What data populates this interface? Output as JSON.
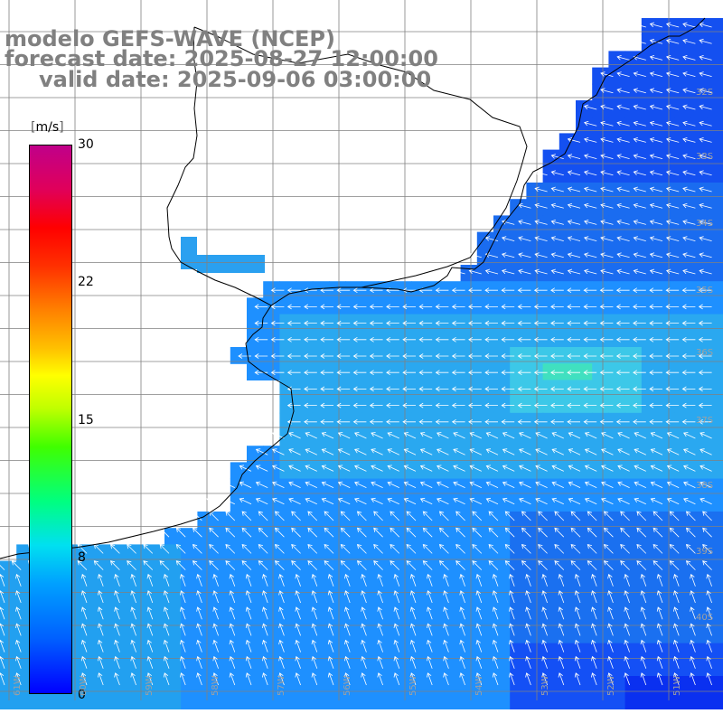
{
  "title": {
    "line1": "modelo GEFS-WAVE (NCEP)",
    "line2": "forecast date: 2025-08-27 12:00:00",
    "line3": "valid date: 2025-09-06 03:00:00"
  },
  "colorbar": {
    "unit": "m/s",
    "ticks": [
      "0",
      "8",
      "15",
      "22",
      "30"
    ],
    "tick_values": [
      0,
      8,
      15,
      22,
      30
    ],
    "colors": [
      "#0000ff",
      "#00a0ff",
      "#00e0f0",
      "#40ff00",
      "#ffff00",
      "#ff8000",
      "#ff0000",
      "#c0008a"
    ]
  },
  "map": {
    "variable": "wind speed",
    "lat_labels": [
      "32S",
      "33S",
      "34S",
      "35S",
      "36S",
      "37S",
      "38S",
      "39S",
      "40S"
    ],
    "lon_labels": [
      "61W",
      "60W",
      "59W",
      "58W",
      "57W",
      "56W",
      "55W",
      "54W",
      "53W",
      "52W",
      "51W"
    ],
    "ocean_speed_range_ms": [
      2,
      9
    ],
    "wind_direction": "from east / north-east",
    "land_color": "#ffffff",
    "grid_color": "#808080",
    "coast_color": "#000000"
  }
}
